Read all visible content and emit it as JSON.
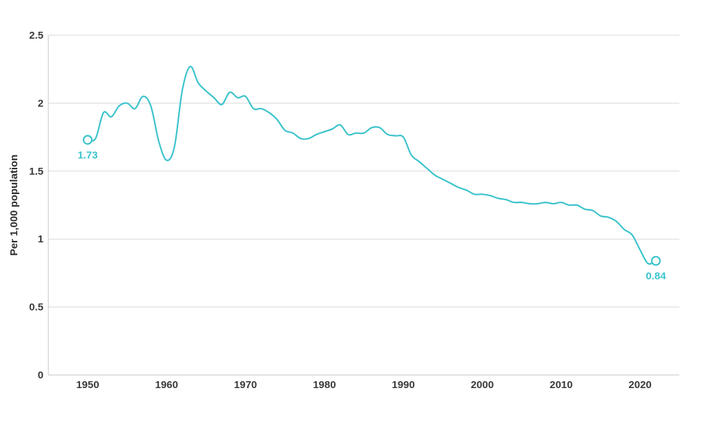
{
  "chart_data": {
    "type": "line",
    "title": "",
    "xlabel": "",
    "ylabel": "Per 1,000 population",
    "xlim": [
      1945,
      2026
    ],
    "ylim": [
      0,
      2.5
    ],
    "grid": true,
    "legend": null,
    "line_color": "#3cc3cc",
    "y_ticks": [
      {
        "value": 0,
        "label": "0"
      },
      {
        "value": 0.5,
        "label": "0.5"
      },
      {
        "value": 1,
        "label": "1"
      },
      {
        "value": 1.5,
        "label": "1.5"
      },
      {
        "value": 2,
        "label": "2"
      },
      {
        "value": 2.5,
        "label": "2.5"
      }
    ],
    "x_ticks": [
      {
        "value": 1950,
        "label": "1950"
      },
      {
        "value": 1960,
        "label": "1960"
      },
      {
        "value": 1970,
        "label": "1970"
      },
      {
        "value": 1980,
        "label": "1980"
      },
      {
        "value": 1990,
        "label": "1990"
      },
      {
        "value": 2000,
        "label": "2000"
      },
      {
        "value": 2010,
        "label": "2010"
      },
      {
        "value": 2020,
        "label": "2020"
      }
    ],
    "x": [
      1950,
      1951,
      1952,
      1953,
      1954,
      1955,
      1956,
      1957,
      1958,
      1959,
      1960,
      1961,
      1962,
      1963,
      1964,
      1965,
      1966,
      1967,
      1968,
      1969,
      1970,
      1971,
      1972,
      1973,
      1974,
      1975,
      1976,
      1977,
      1978,
      1979,
      1980,
      1981,
      1982,
      1983,
      1984,
      1985,
      1986,
      1987,
      1988,
      1989,
      1990,
      1991,
      1992,
      1993,
      1994,
      1995,
      1996,
      1997,
      1998,
      1999,
      2000,
      2001,
      2002,
      2003,
      2004,
      2005,
      2006,
      2007,
      2008,
      2009,
      2010,
      2011,
      2012,
      2013,
      2014,
      2015,
      2016,
      2017,
      2018,
      2019,
      2020,
      2021,
      2022
    ],
    "series": [
      {
        "name": "Rate per 1,000 population",
        "values": [
          1.73,
          1.74,
          1.93,
          1.9,
          1.98,
          2.0,
          1.96,
          2.05,
          1.98,
          1.72,
          1.58,
          1.68,
          2.1,
          2.27,
          2.15,
          2.09,
          2.04,
          1.99,
          2.08,
          2.04,
          2.05,
          1.96,
          1.96,
          1.93,
          1.88,
          1.8,
          1.78,
          1.74,
          1.74,
          1.77,
          1.79,
          1.81,
          1.84,
          1.77,
          1.78,
          1.78,
          1.82,
          1.82,
          1.77,
          1.76,
          1.75,
          1.62,
          1.57,
          1.52,
          1.47,
          1.44,
          1.41,
          1.38,
          1.36,
          1.33,
          1.33,
          1.32,
          1.3,
          1.29,
          1.27,
          1.27,
          1.26,
          1.26,
          1.27,
          1.26,
          1.27,
          1.25,
          1.25,
          1.22,
          1.21,
          1.17,
          1.16,
          1.13,
          1.07,
          1.03,
          0.92,
          0.82,
          0.84
        ]
      }
    ],
    "annotations": [
      {
        "x": 1950,
        "y": 1.73,
        "label": "1.73",
        "position": "below"
      },
      {
        "x": 2022,
        "y": 0.84,
        "label": "0.84",
        "position": "below"
      }
    ]
  }
}
